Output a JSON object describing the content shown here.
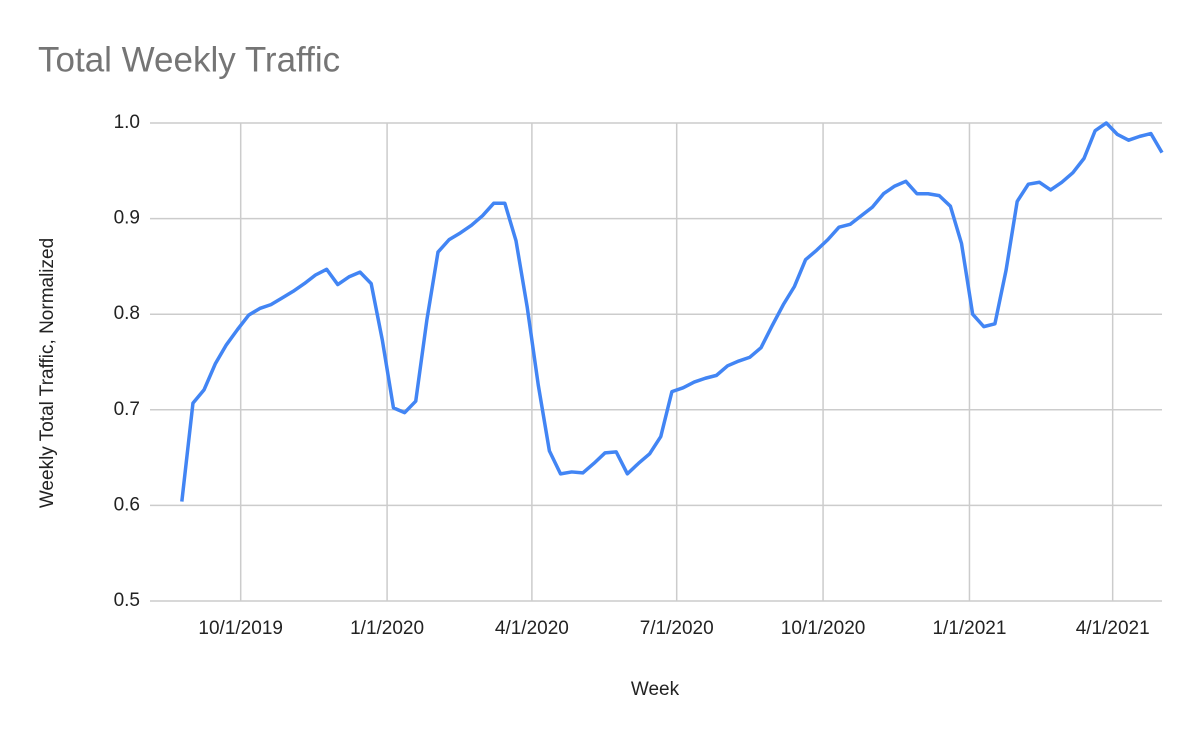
{
  "chart_data": {
    "type": "line",
    "title": "Total Weekly Traffic",
    "x_label": "Week",
    "y_label": "Weekly Total Traffic, Normalized",
    "x": [
      "8/25/2019",
      "9/1/2019",
      "9/8/2019",
      "9/15/2019",
      "9/22/2019",
      "9/29/2019",
      "10/6/2019",
      "10/13/2019",
      "10/20/2019",
      "10/27/2019",
      "11/3/2019",
      "11/10/2019",
      "11/17/2019",
      "11/24/2019",
      "12/1/2019",
      "12/8/2019",
      "12/15/2019",
      "12/22/2019",
      "12/29/2019",
      "1/5/2020",
      "1/12/2020",
      "1/19/2020",
      "1/26/2020",
      "2/2/2020",
      "2/9/2020",
      "2/16/2020",
      "2/23/2020",
      "3/1/2020",
      "3/8/2020",
      "3/15/2020",
      "3/22/2020",
      "3/29/2020",
      "4/5/2020",
      "4/12/2020",
      "4/19/2020",
      "4/26/2020",
      "5/3/2020",
      "5/10/2020",
      "5/17/2020",
      "5/24/2020",
      "5/31/2020",
      "6/7/2020",
      "6/14/2020",
      "6/21/2020",
      "6/28/2020",
      "7/5/2020",
      "7/12/2020",
      "7/19/2020",
      "7/26/2020",
      "8/2/2020",
      "8/9/2020",
      "8/16/2020",
      "8/23/2020",
      "8/30/2020",
      "9/6/2020",
      "9/13/2020",
      "9/20/2020",
      "9/27/2020",
      "10/4/2020",
      "10/11/2020",
      "10/18/2020",
      "10/25/2020",
      "11/1/2020",
      "11/8/2020",
      "11/15/2020",
      "11/22/2020",
      "11/29/2020",
      "12/6/2020",
      "12/13/2020",
      "12/20/2020",
      "12/27/2020",
      "1/3/2021",
      "1/10/2021",
      "1/17/2021",
      "1/24/2021",
      "1/31/2021",
      "2/7/2021",
      "2/14/2021",
      "2/21/2021",
      "2/28/2021",
      "3/7/2021",
      "3/14/2021",
      "3/21/2021",
      "3/28/2021",
      "4/4/2021",
      "4/11/2021",
      "4/18/2021",
      "4/25/2021",
      "5/2/2021"
    ],
    "series": [
      {
        "name": "Weekly Total Traffic, Normalized",
        "color": "#4285f4",
        "values": [
          0.604,
          0.707,
          0.721,
          0.748,
          0.768,
          0.784,
          0.799,
          0.806,
          0.81,
          0.817,
          0.824,
          0.832,
          0.841,
          0.847,
          0.831,
          0.839,
          0.844,
          0.832,
          0.773,
          0.702,
          0.697,
          0.709,
          0.794,
          0.865,
          0.878,
          0.885,
          0.893,
          0.903,
          0.916,
          0.916,
          0.877,
          0.808,
          0.726,
          0.657,
          0.633,
          0.635,
          0.634,
          0.644,
          0.655,
          0.656,
          0.633,
          0.644,
          0.654,
          0.672,
          0.719,
          0.723,
          0.729,
          0.733,
          0.736,
          0.746,
          0.751,
          0.755,
          0.765,
          0.788,
          0.81,
          0.829,
          0.857,
          0.867,
          0.878,
          0.891,
          0.894,
          0.903,
          0.912,
          0.926,
          0.934,
          0.939,
          0.926,
          0.926,
          0.924,
          0.913,
          0.874,
          0.8,
          0.787,
          0.79,
          0.846,
          0.918,
          0.936,
          0.938,
          0.93,
          0.938,
          0.948,
          0.963,
          0.992,
          1.0,
          0.988,
          0.982,
          0.986,
          0.989,
          0.969
        ]
      }
    ],
    "xlim": [
      "8/5/2019",
      "5/2/2021"
    ],
    "xticks": [
      "10/1/2019",
      "1/1/2020",
      "4/1/2020",
      "7/1/2020",
      "10/1/2020",
      "1/1/2021",
      "4/1/2021"
    ],
    "ylim": [
      0.5,
      1
    ],
    "yticks": [
      0.5,
      0.6,
      0.7,
      0.8,
      0.9,
      {
        "value": 1,
        "label": "1.0"
      }
    ],
    "grid": true
  }
}
